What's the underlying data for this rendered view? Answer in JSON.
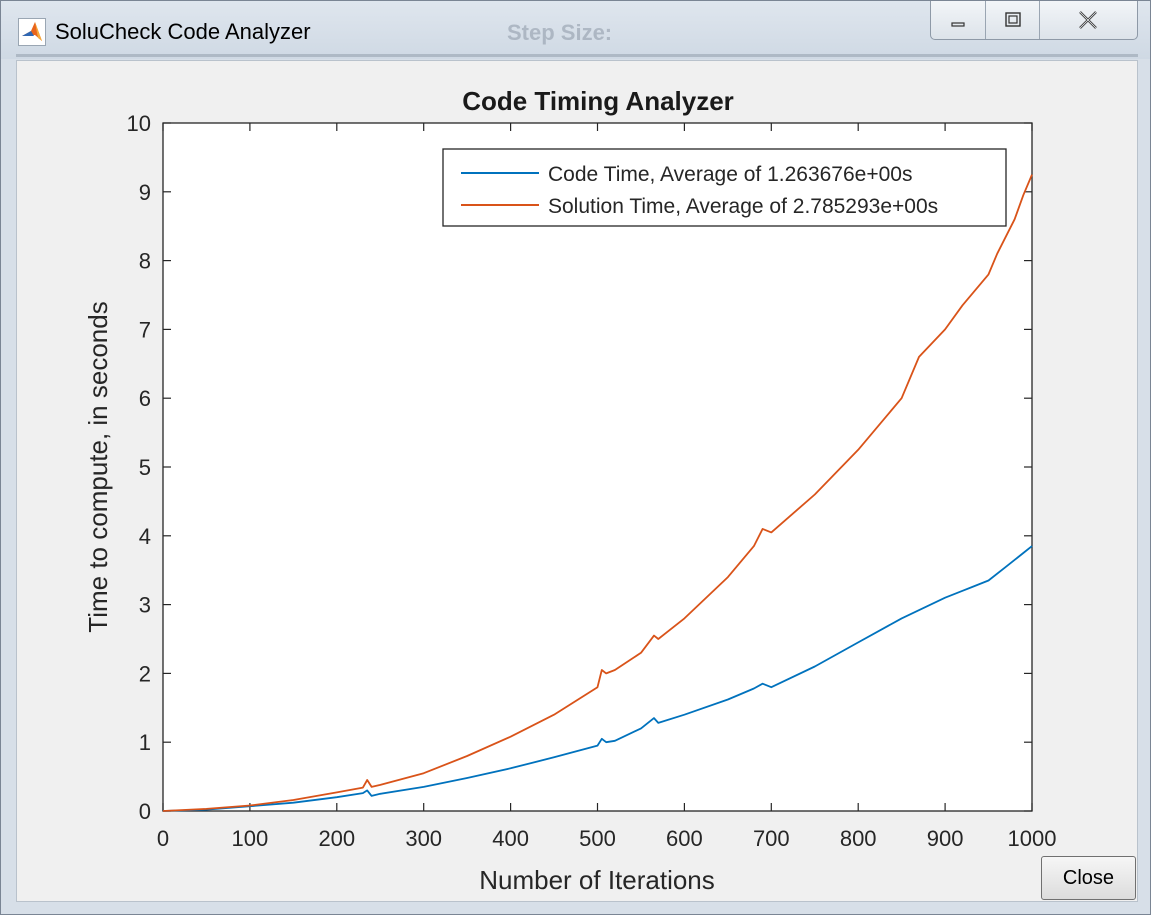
{
  "window": {
    "title": "SoluCheck Code Analyzer",
    "background_ghost_text": "Step Size:"
  },
  "chart_data": {
    "type": "line",
    "title": "Code Timing Analyzer",
    "xlabel": "Number of Iterations",
    "ylabel": "Time to compute, in seconds",
    "xlim": [
      0,
      1000
    ],
    "ylim": [
      0,
      10
    ],
    "x_ticks": [
      "0",
      "100",
      "200",
      "300",
      "400",
      "500",
      "600",
      "700",
      "800",
      "900",
      "1000"
    ],
    "y_ticks": [
      "0",
      "1",
      "2",
      "3",
      "4",
      "5",
      "6",
      "7",
      "8",
      "9",
      "10"
    ],
    "grid": false,
    "legend_position": "top-right",
    "series": [
      {
        "name": "Code Time, Average of 1.263676e+00s",
        "color": "#0072bd",
        "x": [
          0,
          50,
          100,
          150,
          200,
          230,
          235,
          240,
          250,
          300,
          350,
          400,
          450,
          500,
          505,
          510,
          520,
          550,
          565,
          570,
          600,
          650,
          680,
          690,
          700,
          750,
          800,
          850,
          900,
          920,
          930,
          950,
          970,
          990,
          1000
        ],
        "y": [
          0,
          0.02,
          0.07,
          0.12,
          0.2,
          0.26,
          0.3,
          0.22,
          0.25,
          0.35,
          0.48,
          0.62,
          0.78,
          0.95,
          1.05,
          1.0,
          1.02,
          1.2,
          1.35,
          1.28,
          1.4,
          1.62,
          1.78,
          1.85,
          1.8,
          2.1,
          2.45,
          2.8,
          3.1,
          3.2,
          3.25,
          3.35,
          3.55,
          3.75,
          3.85
        ]
      },
      {
        "name": "Solution Time, Average of 2.785293e+00s",
        "color": "#d95319",
        "x": [
          0,
          50,
          100,
          150,
          200,
          230,
          235,
          240,
          250,
          300,
          350,
          400,
          450,
          500,
          505,
          510,
          520,
          550,
          565,
          570,
          600,
          650,
          680,
          690,
          700,
          750,
          800,
          850,
          870,
          900,
          920,
          950,
          960,
          980,
          990,
          1000
        ],
        "y": [
          0,
          0.03,
          0.08,
          0.16,
          0.27,
          0.34,
          0.45,
          0.35,
          0.38,
          0.55,
          0.8,
          1.08,
          1.4,
          1.8,
          2.05,
          2.0,
          2.05,
          2.3,
          2.55,
          2.5,
          2.8,
          3.4,
          3.85,
          4.1,
          4.05,
          4.6,
          5.25,
          6.0,
          6.6,
          7.0,
          7.35,
          7.8,
          8.1,
          8.6,
          8.95,
          9.25
        ]
      }
    ]
  },
  "buttons": {
    "close": "Close"
  },
  "icons": {
    "app_icon": "matlab-icon",
    "minimize": "minimize-icon",
    "maximize": "maximize-icon",
    "close_window": "close-icon"
  }
}
